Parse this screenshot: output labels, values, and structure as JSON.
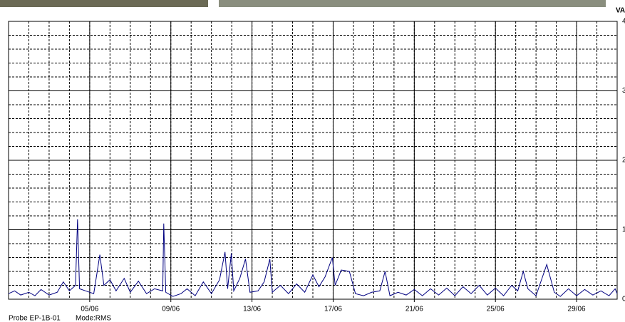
{
  "chart_data": {
    "type": "line",
    "y_label": "VA",
    "xlim": [
      1,
      31
    ],
    "ylim": [
      0,
      4
    ],
    "xticks": [
      {
        "value": 5,
        "label": "05/06"
      },
      {
        "value": 9,
        "label": "09/06"
      },
      {
        "value": 13,
        "label": "13/06"
      },
      {
        "value": 17,
        "label": "17/06"
      },
      {
        "value": 21,
        "label": "21/06"
      },
      {
        "value": 25,
        "label": "25/06"
      },
      {
        "value": 29,
        "label": "29/06"
      }
    ],
    "yticks": [
      0,
      1,
      2,
      3,
      4
    ],
    "grid": true,
    "x": [
      1.0,
      1.3,
      1.6,
      2.0,
      2.3,
      2.6,
      3.0,
      3.4,
      3.7,
      4.0,
      4.3,
      4.4,
      4.5,
      4.8,
      5.2,
      5.5,
      5.7,
      6.0,
      6.3,
      6.7,
      7.0,
      7.4,
      7.8,
      8.2,
      8.6,
      8.65,
      8.75,
      9.1,
      9.5,
      9.8,
      10.2,
      10.6,
      11.0,
      11.4,
      11.67,
      11.8,
      11.98,
      12.1,
      12.4,
      12.68,
      12.9,
      13.3,
      13.6,
      13.88,
      14.0,
      14.4,
      14.8,
      15.2,
      15.6,
      16.0,
      16.3,
      16.6,
      16.96,
      17.1,
      17.4,
      17.8,
      18.1,
      18.5,
      18.9,
      19.3,
      19.56,
      19.8,
      20.2,
      20.6,
      21.0,
      21.4,
      21.8,
      22.2,
      22.6,
      23.0,
      23.4,
      23.8,
      24.2,
      24.6,
      25.0,
      25.4,
      25.8,
      26.1,
      26.37,
      26.6,
      27.0,
      27.53,
      27.9,
      28.2,
      28.6,
      29.0,
      29.4,
      29.8,
      30.2,
      30.6,
      30.9,
      31.0
    ],
    "series": [
      {
        "color": "#000080",
        "values": [
          0.08,
          0.12,
          0.06,
          0.1,
          0.05,
          0.14,
          0.06,
          0.1,
          0.25,
          0.12,
          0.2,
          1.15,
          0.15,
          0.12,
          0.08,
          0.64,
          0.2,
          0.28,
          0.12,
          0.3,
          0.1,
          0.26,
          0.08,
          0.15,
          0.12,
          1.09,
          0.1,
          0.04,
          0.08,
          0.15,
          0.05,
          0.25,
          0.08,
          0.28,
          0.68,
          0.15,
          0.66,
          0.12,
          0.3,
          0.58,
          0.1,
          0.12,
          0.25,
          0.58,
          0.1,
          0.2,
          0.08,
          0.22,
          0.1,
          0.35,
          0.18,
          0.32,
          0.6,
          0.2,
          0.42,
          0.4,
          0.08,
          0.05,
          0.1,
          0.12,
          0.4,
          0.05,
          0.1,
          0.06,
          0.14,
          0.05,
          0.15,
          0.06,
          0.16,
          0.05,
          0.18,
          0.08,
          0.2,
          0.06,
          0.16,
          0.05,
          0.2,
          0.12,
          0.4,
          0.15,
          0.05,
          0.5,
          0.1,
          0.04,
          0.15,
          0.05,
          0.14,
          0.06,
          0.12,
          0.05,
          0.15,
          0.08
        ]
      }
    ],
    "footer": [
      "Probe EP-1B-01",
      "Mode:RMS"
    ]
  }
}
